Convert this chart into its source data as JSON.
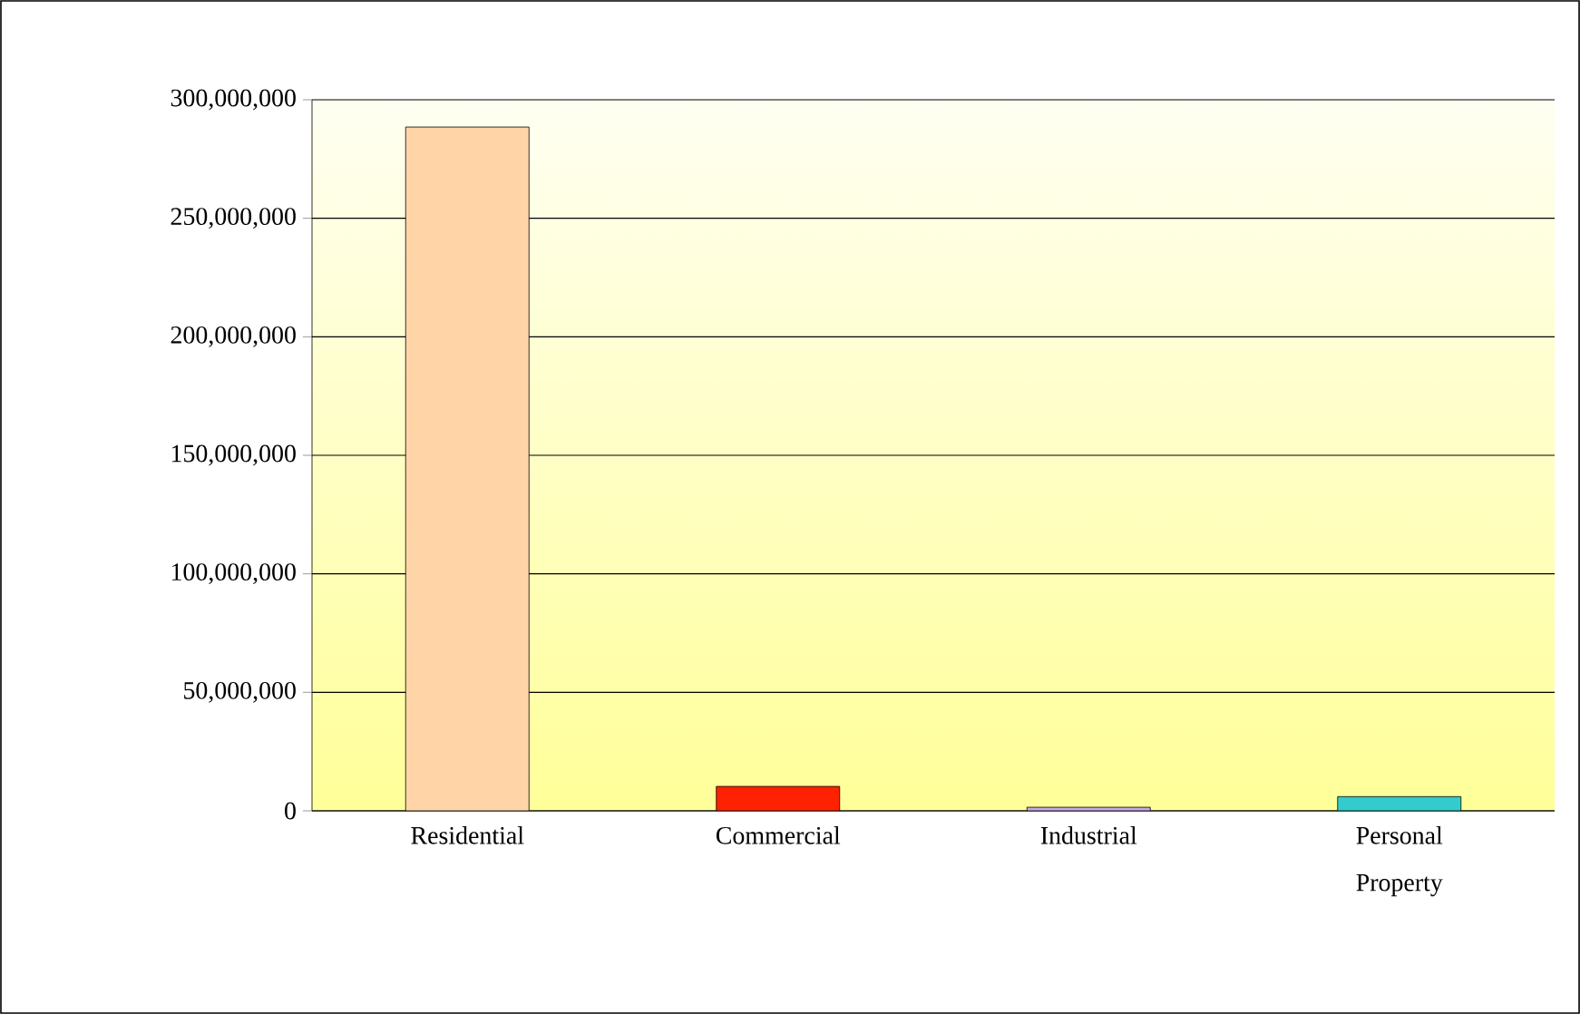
{
  "chart_data": {
    "type": "bar",
    "categories": [
      "Residential",
      "Commercial",
      "Industrial",
      "Personal Property"
    ],
    "values": [
      288500000,
      10300000,
      1500000,
      6000000
    ],
    "colors": [
      "#ffd5a8",
      "#ff2200",
      "#c8a8e8",
      "#33cccc"
    ],
    "ylim": [
      0,
      300000000
    ],
    "yticks": [
      {
        "value": 0,
        "label": "0"
      },
      {
        "value": 50000000,
        "label": "50,000,000"
      },
      {
        "value": 100000000,
        "label": "100,000,000"
      },
      {
        "value": 150000000,
        "label": "150,000,000"
      },
      {
        "value": 200000000,
        "label": "200,000,000"
      },
      {
        "value": 250000000,
        "label": "250,000,000"
      },
      {
        "value": 300000000,
        "label": "300,000,000"
      }
    ],
    "grid": "y"
  }
}
